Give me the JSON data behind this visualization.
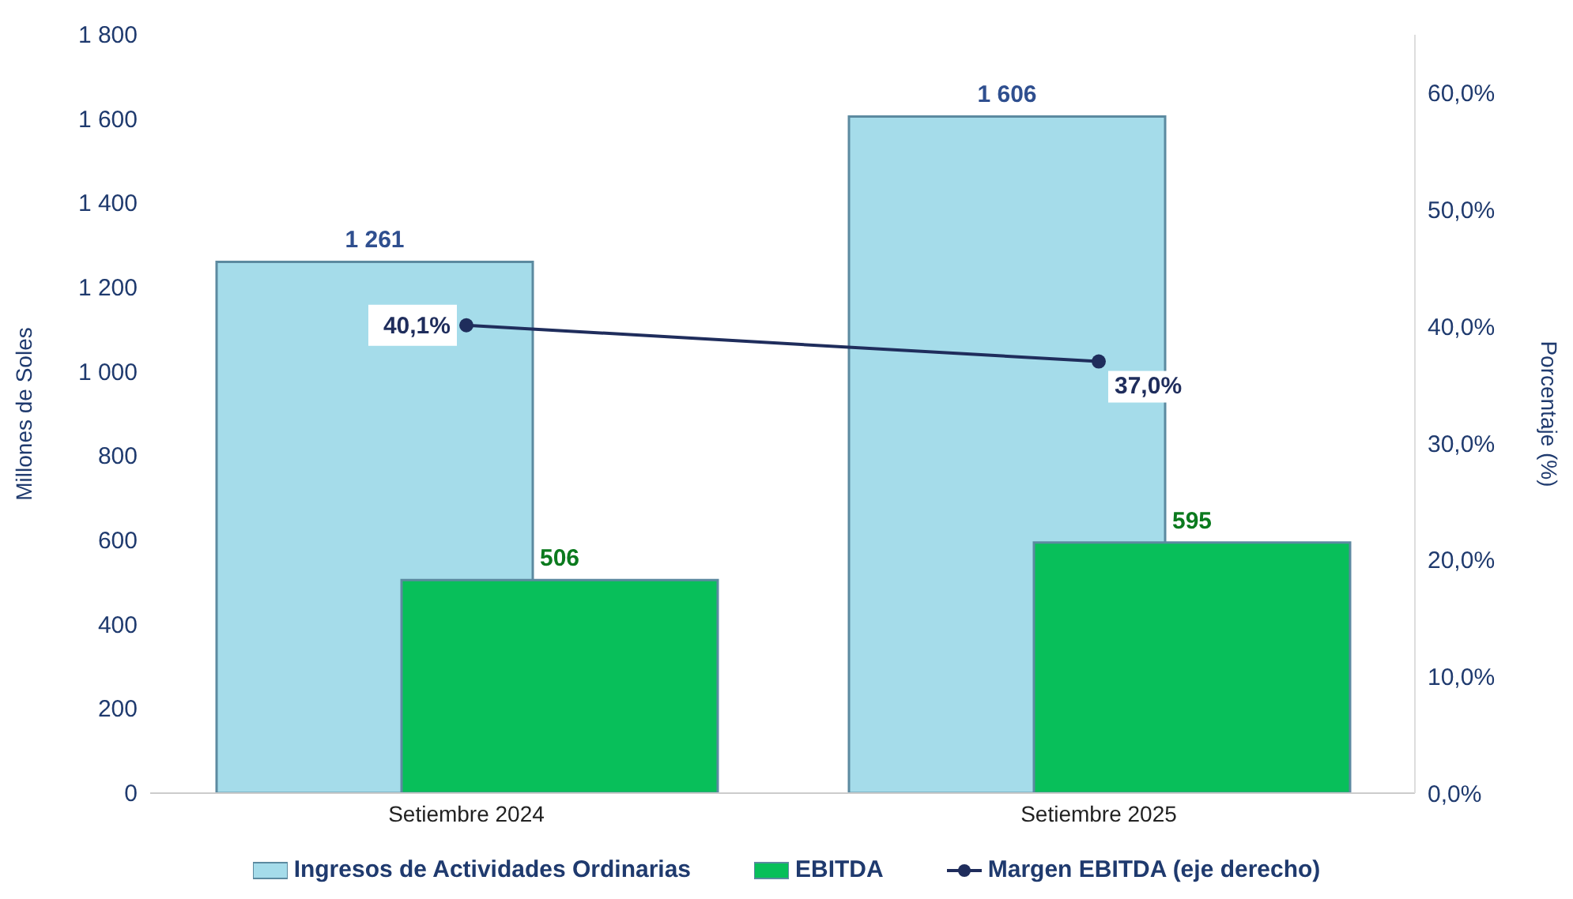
{
  "chart_data": {
    "type": "bar",
    "categories": [
      "Setiembre 2024",
      "Setiembre 2025"
    ],
    "ylabel": "Millones de Soles",
    "y2label": "Porcentaje (%)",
    "ylim": [
      0,
      1800
    ],
    "yticks": [
      0,
      200,
      400,
      600,
      800,
      {
        "value": 1000,
        "label": "1 000"
      },
      {
        "value": 1200,
        "label": "1 200"
      },
      {
        "value": 1400,
        "label": "1 400"
      },
      {
        "value": 1600,
        "label": "1 600"
      },
      {
        "value": 1800,
        "label": "1 800"
      }
    ],
    "y2lim": [
      0,
      65
    ],
    "y2ticks": [
      {
        "value": 0,
        "label": "0,0%"
      },
      {
        "value": 10,
        "label": "10,0%"
      },
      {
        "value": 20,
        "label": "20,0%"
      },
      {
        "value": 30,
        "label": "30,0%"
      },
      {
        "value": 40,
        "label": "40,0%"
      },
      {
        "value": 50,
        "label": "50,0%"
      },
      {
        "value": 60,
        "label": "60,0%"
      }
    ],
    "series": [
      {
        "name": "Ingresos de Actividades Ordinarias",
        "color": "#a5dcea",
        "values": [
          1261,
          1606
        ],
        "value_labels": [
          "1 261",
          "1 606"
        ]
      },
      {
        "name": "EBITDA",
        "color": "#08bf5a",
        "values": [
          506,
          595
        ],
        "value_labels": [
          "506",
          "595"
        ]
      },
      {
        "name": "Margen EBITDA (eje derecho)",
        "type": "line",
        "axis": "y2",
        "color": "#1f2d5c",
        "values": [
          40.1,
          37.0
        ],
        "value_labels": [
          "40,1%",
          "37,0%"
        ]
      }
    ],
    "marker": "circle",
    "line_style": "solid",
    "grid": false,
    "legend": "bottom"
  }
}
